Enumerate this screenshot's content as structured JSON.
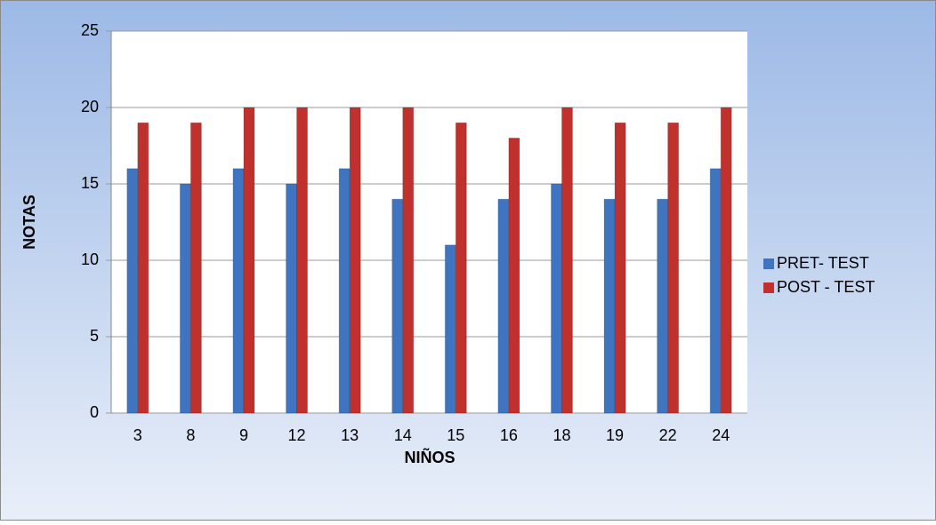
{
  "chart_data": {
    "type": "bar",
    "x_label": "NIÑOS",
    "y_label": "NOTAS",
    "categories": [
      "3",
      "8",
      "9",
      "12",
      "13",
      "14",
      "15",
      "16",
      "18",
      "19",
      "22",
      "24"
    ],
    "series": [
      {
        "name": "PRET- TEST",
        "color": "#3f74c0",
        "values": [
          16,
          15,
          16,
          15,
          16,
          14,
          11,
          14,
          15,
          14,
          14,
          16
        ]
      },
      {
        "name": "POST - TEST",
        "color": "#c0302c",
        "values": [
          19,
          19,
          20,
          20,
          20,
          20,
          19,
          18,
          20,
          19,
          19,
          20
        ]
      }
    ],
    "ylim": [
      0,
      25
    ],
    "yticks": [
      0,
      5,
      10,
      15,
      20,
      25
    ],
    "grid": true,
    "legend": "right"
  }
}
